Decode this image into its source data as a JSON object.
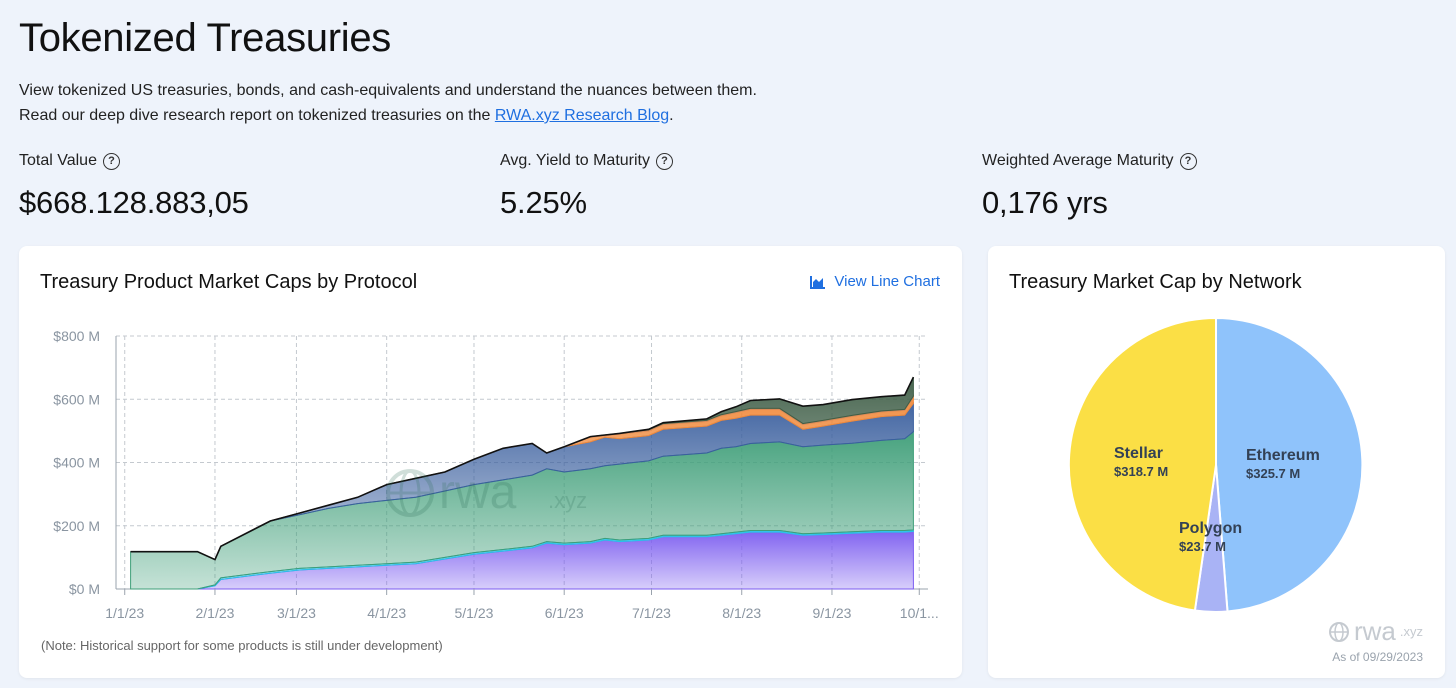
{
  "page": {
    "title": "Tokenized Treasuries",
    "desc_line1": "View tokenized US treasuries, bonds, and cash-equivalents and understand the nuances between them.",
    "desc_line2_prefix": "Read our deep dive research report on tokenized treasuries on the ",
    "desc_link": "RWA.xyz Research Blog",
    "desc_line2_suffix": "."
  },
  "stats": [
    {
      "label": "Total Value",
      "value": "$668.128.883,05"
    },
    {
      "label": "Avg. Yield to Maturity",
      "value": "5.25%"
    },
    {
      "label": "Weighted Average Maturity",
      "value": "0,176 yrs"
    }
  ],
  "help_glyph": "?",
  "left_card": {
    "title": "Treasury Product Market Caps by Protocol",
    "view_line_label": "View Line Chart",
    "note": "(Note: Historical support for some products is still under development)",
    "watermark": "rwa",
    "watermark_suffix": ".xyz"
  },
  "right_card": {
    "title": "Treasury Market Cap by Network",
    "watermark": "rwa",
    "watermark_suffix": ".xyz",
    "as_of": "As of 09/29/2023"
  },
  "chart_data": [
    {
      "type": "area",
      "stacked": true,
      "title": "Treasury Product Market Caps by Protocol",
      "x_tick_labels": [
        "1/1/23",
        "2/1/23",
        "3/1/23",
        "4/1/23",
        "5/1/23",
        "6/1/23",
        "7/1/23",
        "8/1/23",
        "9/1/23",
        "10/1..."
      ],
      "x_tick_days": [
        0,
        31,
        59,
        90,
        120,
        151,
        181,
        212,
        243,
        273
      ],
      "y_tick_labels": [
        "$0 M",
        "$200 M",
        "$400 M",
        "$600 M",
        "$800 M"
      ],
      "ylim": [
        0,
        800
      ],
      "x_range_days": [
        -3,
        276
      ],
      "grid": true,
      "x": [
        2,
        25,
        31,
        33,
        50,
        60,
        70,
        80,
        90,
        100,
        110,
        120,
        130,
        140,
        145,
        151,
        160,
        165,
        170,
        180,
        185,
        200,
        205,
        210,
        215,
        225,
        233,
        240,
        250,
        260,
        268,
        271
      ],
      "series": [
        {
          "color": "#7b5cf0",
          "values": [
            0,
            0,
            10,
            30,
            50,
            60,
            65,
            70,
            75,
            80,
            95,
            110,
            120,
            130,
            145,
            140,
            145,
            155,
            150,
            155,
            165,
            165,
            170,
            175,
            180,
            180,
            170,
            172,
            176,
            180,
            180,
            182
          ]
        },
        {
          "color": "#29c3e8",
          "values": [
            0,
            0,
            3,
            5,
            5,
            5,
            5,
            5,
            5,
            5,
            5,
            5,
            5,
            5,
            5,
            5,
            5,
            5,
            5,
            5,
            5,
            5,
            5,
            5,
            5,
            5,
            5,
            5,
            5,
            5,
            5,
            5
          ]
        },
        {
          "color": "#3e9e78",
          "values": [
            118,
            118,
            80,
            100,
            160,
            170,
            185,
            195,
            200,
            205,
            210,
            215,
            220,
            225,
            230,
            225,
            230,
            230,
            240,
            245,
            250,
            260,
            270,
            270,
            275,
            280,
            275,
            278,
            280,
            285,
            290,
            310
          ]
        },
        {
          "color": "#3a5f9e",
          "values": [
            0,
            0,
            0,
            0,
            0,
            5,
            10,
            20,
            50,
            60,
            60,
            80,
            100,
            100,
            50,
            80,
            85,
            90,
            80,
            80,
            85,
            85,
            88,
            90,
            90,
            85,
            55,
            60,
            70,
            75,
            75,
            90
          ]
        },
        {
          "color": "#f08a3c",
          "values": [
            0,
            0,
            0,
            0,
            0,
            0,
            0,
            0,
            0,
            0,
            0,
            0,
            0,
            0,
            0,
            0,
            15,
            5,
            15,
            15,
            15,
            15,
            15,
            18,
            18,
            18,
            15,
            15,
            15,
            15,
            15,
            20
          ]
        },
        {
          "color": "#d98a5a",
          "values": [
            0,
            0,
            0,
            0,
            0,
            0,
            0,
            0,
            0,
            0,
            0,
            0,
            0,
            0,
            0,
            0,
            2,
            2,
            2,
            3,
            3,
            3,
            3,
            3,
            3,
            3,
            3,
            3,
            3,
            3,
            3,
            3
          ]
        },
        {
          "color": "#3f5e47",
          "values": [
            0,
            0,
            0,
            0,
            0,
            0,
            0,
            0,
            0,
            0,
            0,
            0,
            0,
            0,
            0,
            0,
            0,
            0,
            0,
            2,
            3,
            5,
            10,
            15,
            25,
            30,
            55,
            50,
            50,
            45,
            45,
            60
          ]
        }
      ]
    },
    {
      "type": "pie",
      "title": "Treasury Market Cap by Network",
      "slices": [
        {
          "label": "Ethereum",
          "value": 325.7,
          "value_label": "$325.7 M",
          "color": "#8fc3fb"
        },
        {
          "label": "Polygon",
          "value": 23.7,
          "value_label": "$23.7 M",
          "color": "#a9b3f5"
        },
        {
          "label": "Stellar",
          "value": 318.7,
          "value_label": "$318.7 M",
          "color": "#fbdf45"
        }
      ]
    }
  ]
}
